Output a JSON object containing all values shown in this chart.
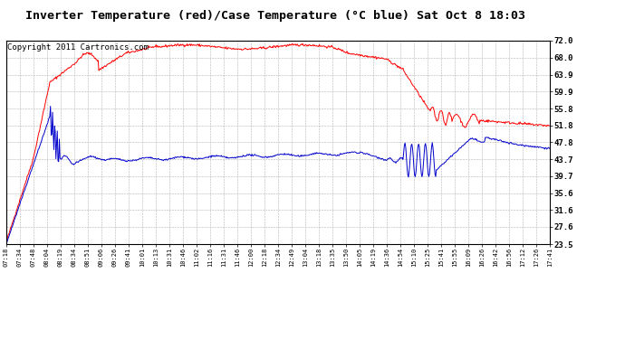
{
  "title": "Inverter Temperature (red)/Case Temperature (°C blue) Sat Oct 8 18:03",
  "copyright": "Copyright 2011 Cartronics.com",
  "yticks": [
    23.5,
    27.6,
    31.6,
    35.6,
    39.7,
    43.7,
    47.8,
    51.8,
    55.8,
    59.9,
    63.9,
    68.0,
    72.0
  ],
  "xtick_labels": [
    "07:18",
    "07:34",
    "07:48",
    "08:04",
    "08:19",
    "08:34",
    "08:51",
    "09:06",
    "09:26",
    "09:41",
    "10:01",
    "10:13",
    "10:31",
    "10:46",
    "11:02",
    "11:16",
    "11:31",
    "11:46",
    "12:00",
    "12:18",
    "12:34",
    "12:49",
    "13:04",
    "13:18",
    "13:35",
    "13:50",
    "14:05",
    "14:19",
    "14:36",
    "14:54",
    "15:10",
    "15:25",
    "15:41",
    "15:55",
    "16:09",
    "16:26",
    "16:42",
    "16:56",
    "17:12",
    "17:26",
    "17:41"
  ],
  "red_color": "#ff0000",
  "blue_color": "#0000cc",
  "background_color": "#ffffff",
  "grid_color": "#aaaaaa",
  "title_fontsize": 9.5,
  "copyright_fontsize": 6.5
}
